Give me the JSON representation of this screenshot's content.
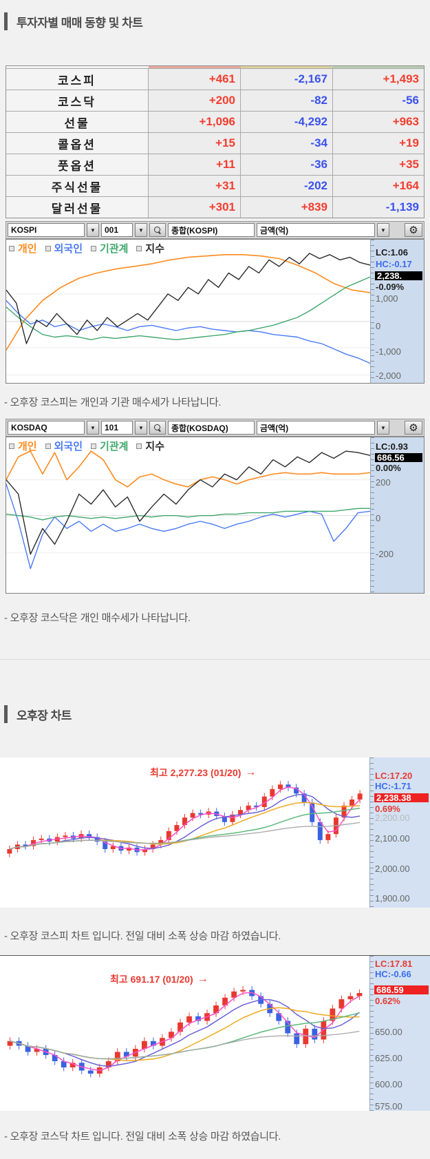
{
  "colors": {
    "up": "#f43d2e",
    "down": "#3a52ee",
    "accent_personal": "#ff8a1e",
    "accent_foreign": "#4a79f5",
    "accent_institution": "#3fa76c",
    "accent_index": "#2a2a2a"
  },
  "icons": {
    "dropdown": "▼",
    "gear": "⚙",
    "arrow": "→"
  },
  "section1_title": "투자자별 매매 동향 및 차트",
  "section2_title": "오후장 차트",
  "trader_table": {
    "rows": [
      {
        "label": "코스피",
        "v1": "+461",
        "v2": "-2,167",
        "v3": "+1,493"
      },
      {
        "label": "코스닥",
        "v1": "+200",
        "v2": "-82",
        "v3": "-56"
      },
      {
        "label": "선물",
        "v1": "+1,096",
        "v2": "-4,292",
        "v3": "+963"
      },
      {
        "label": "콜옵션",
        "v1": "+15",
        "v2": "-34",
        "v3": "+19"
      },
      {
        "label": "풋옵션",
        "v1": "+11",
        "v2": "-36",
        "v3": "+35"
      },
      {
        "label": "주식선물",
        "v1": "+31",
        "v2": "-202",
        "v3": "+164"
      },
      {
        "label": "달러선물",
        "v1": "+301",
        "v2": "+839",
        "v3": "-1,139"
      }
    ]
  },
  "toolbar_kospi": {
    "market": "KOSPI",
    "code": "001",
    "name": "종합(KOSPI)",
    "unit": "금액(억)"
  },
  "toolbar_kosdaq": {
    "market": "KOSDAQ",
    "code": "101",
    "name": "종합(KOSDAQ)",
    "unit": "금액(억)"
  },
  "legend": [
    {
      "label": "개인",
      "color": "#ff8a1e"
    },
    {
      "label": "외국인",
      "color": "#4a79f5"
    },
    {
      "label": "기관계",
      "color": "#3fa76c"
    },
    {
      "label": "지수",
      "color": "#2a2a2a"
    }
  ],
  "flow_kospi_panel": {
    "lc": "LC:1.06",
    "hc": "HC:-0.17",
    "price": "2,238.",
    "pct": "-0.09%"
  },
  "flow_kosdaq_panel": {
    "lc": "LC:0.93",
    "price": "686.56",
    "pct": "0.00%"
  },
  "daily_kospi_panel": {
    "lc": "LC:17.20",
    "hc": "HC:-1.71",
    "price": "2,238.38",
    "pct": "0.69%",
    "faded": "2,200.00"
  },
  "daily_kosdaq_panel": {
    "lc": "LC:17.81",
    "hc": "HC:-0.66",
    "price": "686.59",
    "pct": "0.62%"
  },
  "annotations": {
    "kospi": "최고 2,277.23 (01/20)",
    "kosdaq": "최고 691.17 (01/20)"
  },
  "comments": {
    "c1": "- 오후장 코스피는 개인과 기관 매수세가 나타납니다.",
    "c2": "- 오후장 코스닥은 개인 매수세가 나타납니다.",
    "c3": "- 오후장 코스피 차트 입니다. 전일 대비 소폭 상승 마감 하였습니다.",
    "c4": "- 오후장 코스닥 차트 입니다. 전일 대비 소폭 상승 마감 하였습니다."
  },
  "chart_data": [
    {
      "id": "kospi_investor_flow",
      "type": "line",
      "title": "KOSPI 투자자별 매매 동향 (금액, 억)",
      "y_unit": "percent_of_plot_height_top0",
      "y_ticks": [
        {
          "label": "1,000",
          "pos": 32
        },
        {
          "label": "0",
          "pos": 53
        },
        {
          "label": "-1,000",
          "pos": 73
        },
        {
          "label": "-2,000",
          "pos": 94
        }
      ],
      "series": [
        {
          "name": "개인",
          "color": "#ff8a1e",
          "width": 1.6,
          "y": [
            75,
            52,
            37,
            27,
            20,
            16,
            13,
            11,
            9,
            6,
            4,
            3,
            2,
            2,
            3,
            5,
            10,
            16,
            24,
            29,
            31
          ]
        },
        {
          "name": "외국인",
          "color": "#4a79f5",
          "width": 1.4,
          "y": [
            37,
            47,
            55,
            52,
            57,
            55,
            60,
            57,
            55,
            57,
            60,
            57,
            56,
            58,
            60,
            58,
            57,
            59,
            60,
            61,
            60,
            61,
            63,
            64,
            65,
            68,
            70,
            74,
            78,
            81,
            85
          ]
        },
        {
          "name": "기관계",
          "color": "#3fa76c",
          "width": 1.4,
          "y": [
            42,
            50,
            57,
            63,
            65,
            64,
            65,
            67,
            65,
            66,
            65,
            64,
            65,
            66,
            67,
            66,
            65,
            64,
            63,
            61,
            60,
            58,
            56,
            53,
            50,
            45,
            39,
            33,
            27,
            23,
            19
          ]
        },
        {
          "name": "지수",
          "color": "#2a2a2a",
          "width": 1.4,
          "y": [
            29,
            39,
            70,
            52,
            57,
            47,
            55,
            63,
            52,
            60,
            50,
            57,
            52,
            47,
            52,
            42,
            32,
            37,
            27,
            32,
            21,
            27,
            16,
            21,
            11,
            16,
            6,
            11,
            4,
            9,
            1,
            5,
            2,
            6,
            4,
            8,
            10
          ]
        }
      ]
    },
    {
      "id": "kosdaq_investor_flow",
      "type": "line",
      "title": "KOSDAQ 투자자별 매매 동향 (금액, 억)",
      "y_unit": "percent_of_plot_height_top0",
      "y_ticks": [
        {
          "label": "200",
          "pos": 21
        },
        {
          "label": "0",
          "pos": 46
        },
        {
          "label": "-200",
          "pos": 72
        }
      ],
      "series": [
        {
          "name": "개인",
          "color": "#ff8a1e",
          "width": 1.6,
          "y": [
            21,
            5,
            1,
            17,
            2,
            21,
            12,
            1,
            7,
            21,
            26,
            19,
            17,
            21,
            24,
            26,
            21,
            19,
            21,
            24,
            21,
            19,
            17,
            16,
            17,
            17,
            16,
            17,
            17,
            17,
            16
          ]
        },
        {
          "name": "외국인",
          "color": "#4a79f5",
          "width": 1.4,
          "y": [
            24,
            50,
            83,
            59,
            47,
            55,
            50,
            57,
            52,
            57,
            55,
            52,
            55,
            57,
            55,
            52,
            50,
            52,
            55,
            52,
            50,
            47,
            45,
            47,
            45,
            43,
            45,
            64,
            55,
            44,
            43
          ]
        },
        {
          "name": "기관계",
          "color": "#3fa76c",
          "width": 1.4,
          "y": [
            45,
            46,
            47,
            49,
            47,
            46,
            47,
            48,
            47,
            48,
            47,
            46,
            47,
            46,
            46,
            47,
            46,
            46,
            45,
            45,
            44,
            44,
            44,
            43,
            43,
            43,
            43,
            43,
            42,
            41,
            41
          ]
        },
        {
          "name": "지수",
          "color": "#2a2a2a",
          "width": 1.4,
          "y": [
            21,
            31,
            73,
            55,
            66,
            50,
            31,
            38,
            28,
            40,
            33,
            50,
            40,
            31,
            38,
            28,
            21,
            26,
            17,
            21,
            12,
            17,
            7,
            12,
            5,
            9,
            2,
            6,
            1,
            2,
            4
          ]
        }
      ]
    },
    {
      "id": "kospi_daily_candles",
      "type": "candlestick",
      "title": "KOSPI 일봉",
      "high_annotation": "최고 2,277.23 (01/20)",
      "up_color": "#e8392f",
      "down_color": "#3a62e0",
      "y_unit": "percent_of_plot_height_top0",
      "y_ticks": [
        {
          "label": "2,100.00",
          "pos": 53
        },
        {
          "label": "2,000.00",
          "pos": 74
        },
        {
          "label": "1,900.00",
          "pos": 94
        }
      ],
      "closes": [
        61,
        58,
        59,
        55,
        54,
        56,
        53,
        52,
        54,
        51,
        53,
        56,
        61,
        59,
        62,
        60,
        63,
        61,
        58,
        55,
        49,
        45,
        40,
        37,
        38,
        36,
        39,
        43,
        38,
        35,
        32,
        33,
        26,
        21,
        18,
        20,
        24,
        30,
        43,
        55,
        51,
        40,
        32,
        28,
        24
      ],
      "mas": [
        {
          "color": "#ff50c8",
          "window": 3
        },
        {
          "color": "#6a62d8",
          "window": 7
        },
        {
          "color": "#f0a81c",
          "window": 12
        },
        {
          "color": "#5cb87a",
          "window": 22
        },
        {
          "color": "#a8a8a8",
          "window": 40
        }
      ]
    },
    {
      "id": "kosdaq_daily_candles",
      "type": "candlestick",
      "title": "KOSDAQ 일봉",
      "high_annotation": "최고 691.17 (01/20)",
      "up_color": "#e8392f",
      "down_color": "#3a62e0",
      "y_unit": "percent_of_plot_height_top0",
      "y_ticks": [
        {
          "label": "650.00",
          "pos": 49
        },
        {
          "label": "625.00",
          "pos": 66
        },
        {
          "label": "600.00",
          "pos": 83
        },
        {
          "label": "575.00",
          "pos": 97
        }
      ],
      "closes": [
        55,
        58,
        62,
        60,
        64,
        68,
        72,
        69,
        74,
        76,
        72,
        68,
        62,
        65,
        60,
        55,
        58,
        53,
        49,
        43,
        39,
        42,
        37,
        32,
        27,
        23,
        22,
        26,
        31,
        37,
        42,
        50,
        57,
        47,
        54,
        42,
        34,
        28,
        26,
        24
      ],
      "mas": [
        {
          "color": "#ff50c8",
          "window": 3
        },
        {
          "color": "#6a62d8",
          "window": 7
        },
        {
          "color": "#f0a81c",
          "window": 12
        },
        {
          "color": "#5cb87a",
          "window": 22
        },
        {
          "color": "#a8a8a8",
          "window": 38
        }
      ]
    }
  ]
}
